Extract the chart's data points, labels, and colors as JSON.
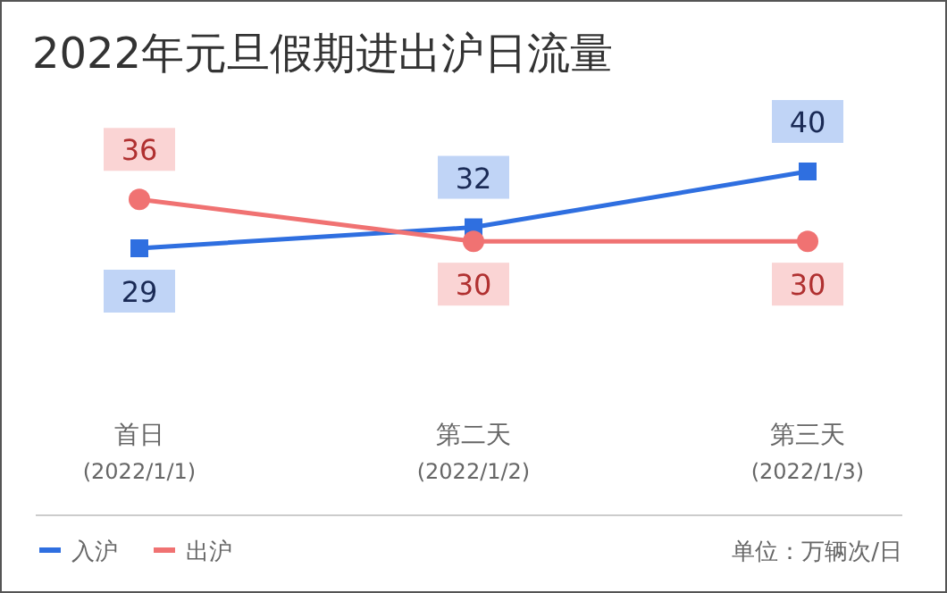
{
  "chart_data": {
    "type": "line",
    "title": "2022年元旦假期进出沪日流量",
    "categories": [
      "首日\n(2022/1/1)",
      "第二天\n(2022/1/2)",
      "第三天\n(2022/1/3)"
    ],
    "series": [
      {
        "name": "入沪",
        "color": "#2f6fe0",
        "marker": "square",
        "values": [
          29,
          32,
          40
        ]
      },
      {
        "name": "出沪",
        "color": "#f07272",
        "marker": "circle",
        "values": [
          36,
          30,
          30
        ]
      }
    ],
    "data_labels": true,
    "grid": false,
    "legend": "bottom left",
    "annotations": [
      "单位：万辆次/日"
    ]
  }
}
